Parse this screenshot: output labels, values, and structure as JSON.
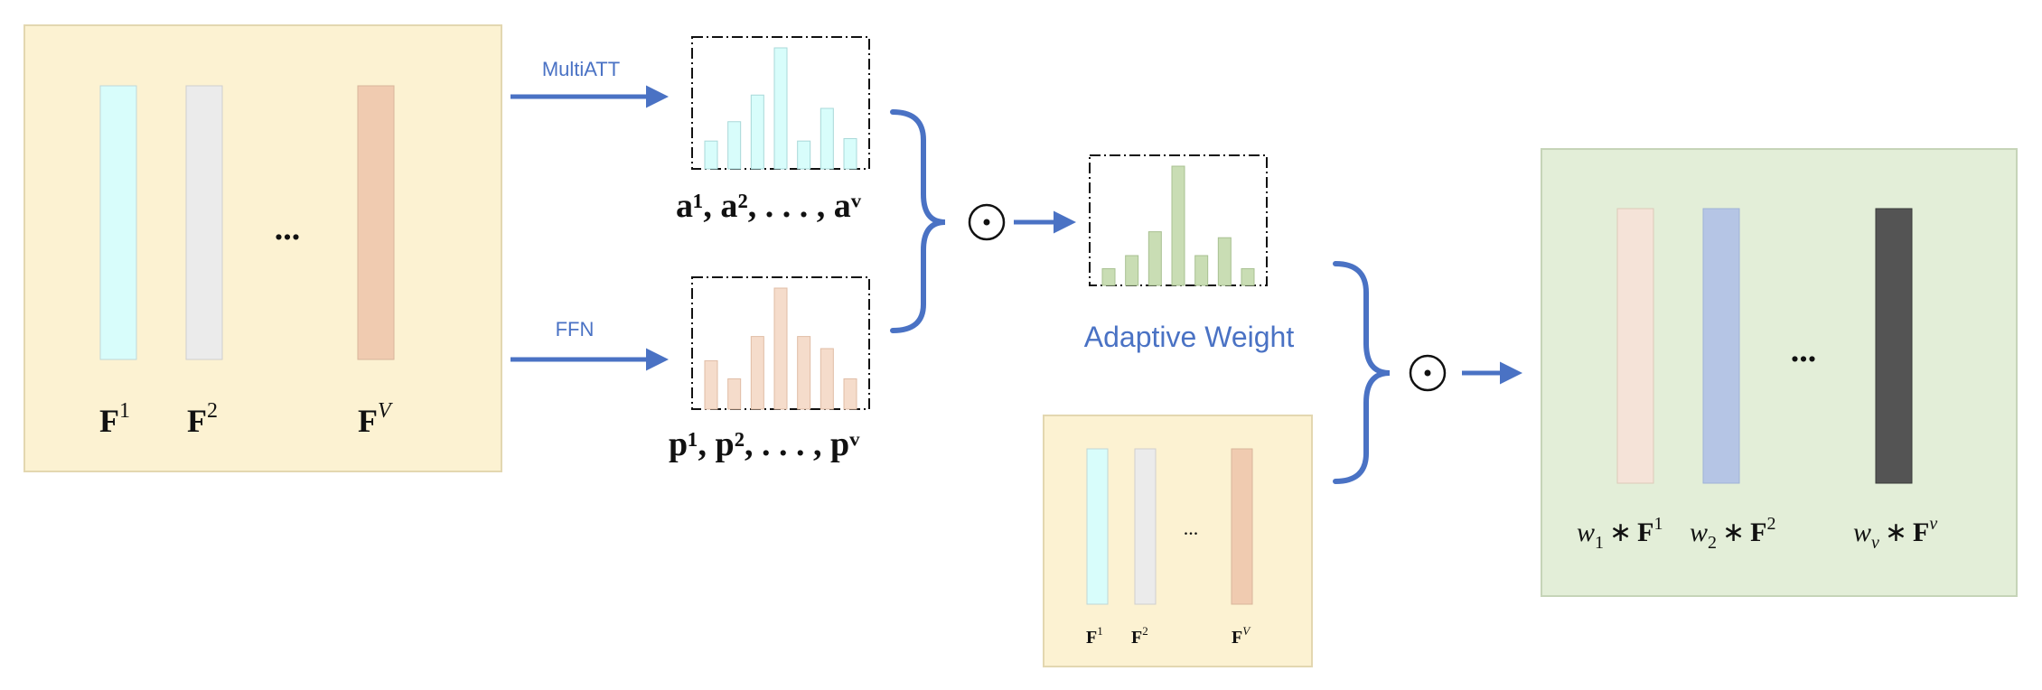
{
  "colors": {
    "arrow": "#4a72c4",
    "panel_yellow": "#fcf2d2",
    "panel_yellow_border": "#e3d7b0",
    "panel_green": "#e3eed8",
    "panel_green_border": "#c6d4b8",
    "bar_cyan": "#d8fdfb",
    "bar_gray": "#ebebeb",
    "bar_peach": "#f0cbb0",
    "bar_att": "#d8fdfb",
    "bar_ffn": "#f5dccb",
    "bar_adaptive": "#c9ddb4",
    "out_bar1": "#f5e3d8",
    "out_bar2": "#b5c5e5",
    "out_bar3": "#545454"
  },
  "input_block": {
    "labels": [
      "F",
      "F",
      "F"
    ],
    "superscripts": [
      "1",
      "2",
      "V"
    ],
    "ellipsis": "..."
  },
  "arrows": {
    "top_label": "MultiATT",
    "bottom_label": "FFN"
  },
  "attention": {
    "bars": [
      0.23,
      0.39,
      0.61,
      1.0,
      0.23,
      0.5,
      0.25
    ],
    "caption": "a¹, a², . . . , aᵛ"
  },
  "ffn": {
    "bars": [
      0.4,
      0.25,
      0.6,
      1.0,
      0.6,
      0.5,
      0.25
    ],
    "caption": "p¹, p², . . . , pᵛ"
  },
  "operators": {
    "hadamard": "⊙"
  },
  "adaptive": {
    "bars": [
      0.14,
      0.25,
      0.45,
      1.0,
      0.25,
      0.4,
      0.14
    ],
    "label": "Adaptive Weight"
  },
  "small_block": {
    "labels": [
      "F",
      "F",
      "F"
    ],
    "superscripts": [
      "1",
      "2",
      "V"
    ],
    "ellipsis": "..."
  },
  "output_block": {
    "weights": [
      "w",
      "w",
      "w"
    ],
    "weight_subs": [
      "1",
      "2",
      "v"
    ],
    "labels": [
      "F",
      "F",
      "F"
    ],
    "superscripts": [
      "1",
      "2",
      "v"
    ],
    "star": "∗",
    "ellipsis": "..."
  }
}
